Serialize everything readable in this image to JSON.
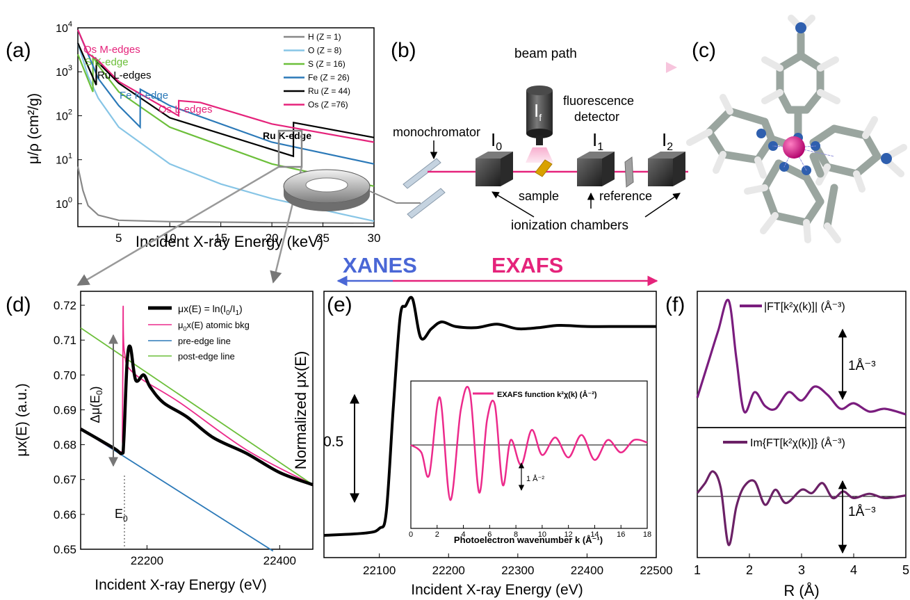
{
  "colors": {
    "H": "#888888",
    "O": "#87c5e6",
    "S": "#6cbf3a",
    "Fe": "#2b79b8",
    "Ru": "#000000",
    "Os": "#e5237b",
    "xanes": "#4a67d6",
    "exafs": "#e5237b",
    "purple": "#7a1d7e",
    "purple2": "#6b2166",
    "pink": "#ec2a8b"
  },
  "panels": {
    "a": {
      "label": "(a)",
      "ylabel": "μ/ρ (cm²/g)",
      "xlabel": "Incident X-ray Energy (keV)",
      "xticks": [
        "5",
        "10",
        "15",
        "20",
        "25",
        "30"
      ],
      "yticks_exp": [
        "0",
        "1",
        "2",
        "3",
        "4"
      ],
      "ytick_base": "10",
      "legend": [
        "H (Z = 1)",
        "O (Z = 8)",
        "S (Z = 16)",
        "Fe (Z = 26)",
        "Ru (Z = 44)",
        "Os (Z =76)"
      ],
      "annotations": {
        "os_m": "Os M-edges",
        "s_k": "S K-edge",
        "ru_l": "Ru L-edges",
        "fe_k": "Fe K-edge",
        "os_l": "Os L-edges",
        "ru_k": "Ru K-edge"
      }
    },
    "b": {
      "label": "(b)",
      "beam_path": "beam path",
      "monochromator": "monochromator",
      "fluorescence": "fluorescence",
      "detector": "detector",
      "i0": "I",
      "i0_sub": "0",
      "i1": "I",
      "i1_sub": "1",
      "i2": "I",
      "i2_sub": "2",
      "if": "I",
      "if_sub": "f",
      "sample": "sample",
      "reference": "reference",
      "ionization": "ionization chambers"
    },
    "c": {
      "label": "(c)"
    },
    "d": {
      "label": "(d)",
      "ylabel": "μx(E) (a.u.)",
      "xlabel": "Incident X-ray Energy (eV)",
      "yticks": [
        "0.65",
        "0.66",
        "0.67",
        "0.68",
        "0.69",
        "0.70",
        "0.71",
        "0.72"
      ],
      "xticks": [
        "22200",
        "22400"
      ],
      "legend": [
        "μx(E) = ln(I0/I1)",
        "μ0x(E) atomic bkg",
        "pre-edge line",
        "post-edge line"
      ],
      "delta_mu": "Δμ(E0)",
      "e0": "E0"
    },
    "banner": {
      "xanes": "XANES",
      "exafs": "EXAFS"
    },
    "e": {
      "label": "(e)",
      "ylabel": "Normalized μx(E)",
      "xlabel": "Incident X-ray Energy (eV)",
      "xticks": [
        "22100",
        "22200",
        "22300",
        "22400",
        "22500"
      ],
      "scale": "0.5",
      "inset_legend": "EXAFS function k²χ(k) (Å⁻²)",
      "inset_xlabel": "Photoelectron wavenumber k (Å⁻¹)",
      "inset_xticks": [
        "0",
        "2",
        "4",
        "6",
        "8",
        "10",
        "12",
        "14",
        "16",
        "18"
      ],
      "inset_scale": "1 Å⁻²"
    },
    "f": {
      "label": "(f)",
      "top_legend": "|FT[k²χ(k)]| (Å⁻³)",
      "bottom_legend": "Im{FT[k²χ(k)]} (Å⁻³)",
      "scale": "1Å⁻³",
      "xlabel": "R (Å)",
      "xticks": [
        "1",
        "2",
        "3",
        "4",
        "5"
      ]
    }
  },
  "chart_data": [
    {
      "type": "line",
      "panel": "a",
      "log_y": true,
      "xlabel": "Incident X-ray Energy (keV)",
      "ylabel": "μ/ρ (cm²/g)",
      "xlim": [
        1,
        30
      ],
      "ylim": [
        0.3,
        10000
      ],
      "series": [
        {
          "name": "H (Z = 1)",
          "x": [
            1,
            1.5,
            2,
            3,
            5,
            10,
            20,
            30
          ],
          "y": [
            7,
            2,
            0.9,
            0.55,
            0.42,
            0.39,
            0.37,
            0.36
          ]
        },
        {
          "name": "O (Z = 8)",
          "x": [
            1,
            2,
            3,
            5,
            10,
            15,
            20,
            30
          ],
          "y": [
            4500,
            800,
            250,
            55,
            8,
            2.8,
            1.3,
            0.4
          ]
        },
        {
          "name": "S (Z = 16)",
          "x": [
            1,
            2.47,
            2.48,
            3,
            5,
            10,
            20,
            30
          ],
          "y": [
            2500,
            350,
            2200,
            1400,
            350,
            55,
            8,
            2.5
          ]
        },
        {
          "name": "Fe (Z = 26)",
          "x": [
            1,
            3,
            5,
            7.1,
            7.11,
            10,
            20,
            30
          ],
          "y": [
            9000,
            700,
            170,
            55,
            400,
            170,
            25,
            8
          ]
        },
        {
          "name": "Ru (Z = 44)",
          "x": [
            1,
            2.8,
            2.81,
            3,
            5,
            10,
            22.1,
            22.12,
            30
          ],
          "y": [
            4500,
            500,
            1900,
            1600,
            550,
            90,
            12,
            70,
            32
          ]
        },
        {
          "name": "Os (Z =76)",
          "x": [
            1,
            2,
            3,
            5,
            10.87,
            10.88,
            13,
            20,
            30
          ],
          "y": [
            9000,
            2600,
            1800,
            600,
            100,
            220,
            200,
            65,
            25
          ]
        }
      ]
    },
    {
      "type": "line",
      "panel": "d",
      "xlabel": "Incident X-ray Energy (eV)",
      "ylabel": "μx(E) (a.u.)",
      "xlim": [
        22100,
        22450
      ],
      "ylim": [
        0.65,
        0.724
      ],
      "series": [
        {
          "name": "μx(E) = ln(I0/I1)",
          "x": [
            22100,
            22150,
            22162,
            22165,
            22170,
            22175,
            22183,
            22195,
            22205,
            22225,
            22260,
            22300,
            22350,
            22400,
            22450
          ],
          "y": [
            0.6845,
            0.679,
            0.6775,
            0.681,
            0.7035,
            0.708,
            0.6985,
            0.7,
            0.6965,
            0.692,
            0.688,
            0.682,
            0.6775,
            0.672,
            0.6685
          ]
        },
        {
          "name": "μ0x(E) atomic bkg",
          "x": [
            22100,
            22160,
            22163,
            22164,
            22166,
            22180,
            22250,
            22350,
            22450
          ],
          "y": [
            0.6845,
            0.678,
            0.683,
            0.719,
            0.7065,
            0.7005,
            0.692,
            0.6785,
            0.6685
          ]
        },
        {
          "name": "pre-edge line",
          "x": [
            22100,
            22390
          ],
          "y": [
            0.6845,
            0.6495
          ]
        },
        {
          "name": "post-edge line",
          "x": [
            22100,
            22450
          ],
          "y": [
            0.7135,
            0.6685
          ]
        }
      ]
    },
    {
      "type": "line",
      "panel": "e",
      "xlabel": "Incident X-ray Energy (eV)",
      "ylabel": "Normalized μx(E)",
      "xlim": [
        22020,
        22500
      ],
      "series": [
        {
          "name": "Normalized μx(E)",
          "x": [
            22020,
            22080,
            22100,
            22110,
            22120,
            22130,
            22138,
            22148,
            22160,
            22175,
            22190,
            22210,
            22240,
            22270,
            22300,
            22330,
            22360,
            22400,
            22450,
            22500
          ],
          "y": [
            0.0,
            0.01,
            0.03,
            0.1,
            0.55,
            0.95,
            1.0,
            1.03,
            0.86,
            0.9,
            0.93,
            0.91,
            0.905,
            0.92,
            0.9,
            0.905,
            0.915,
            0.91,
            0.91,
            0.91
          ]
        }
      ]
    },
    {
      "type": "line",
      "panel": "e-inset",
      "xlabel": "Photoelectron wavenumber k (Å⁻¹)",
      "xlim": [
        0,
        18
      ],
      "series": [
        {
          "name": "EXAFS function k²χ(k) (Å⁻²)",
          "x": [
            0,
            0.8,
            1.4,
            2.2,
            3.0,
            3.8,
            4.5,
            5.2,
            5.8,
            6.4,
            7.0,
            7.6,
            8.4,
            9.2,
            10.0,
            11.0,
            12.0,
            13.0,
            14.0,
            15.0,
            16.0,
            17.0,
            18.0
          ],
          "y": [
            0.0,
            -0.3,
            -1.2,
            1.9,
            -2.2,
            1.4,
            2.1,
            -1.9,
            1.0,
            1.6,
            -1.6,
            0.2,
            -0.8,
            0.6,
            -0.4,
            0.3,
            -0.5,
            0.4,
            -0.6,
            0.2,
            -0.3,
            0.2,
            0.1
          ]
        }
      ]
    },
    {
      "type": "line",
      "panel": "f",
      "xlabel": "R (Å)",
      "xlim": [
        1,
        5
      ],
      "series": [
        {
          "name": "|FT[k²χ(k)]| (Å⁻³)",
          "x": [
            1.0,
            1.2,
            1.4,
            1.6,
            1.75,
            1.9,
            2.1,
            2.3,
            2.5,
            2.75,
            3.0,
            3.25,
            3.5,
            3.75,
            4.0,
            4.3,
            4.6,
            5.0
          ],
          "y": [
            0.35,
            0.95,
            1.55,
            2.1,
            1.05,
            0.1,
            0.45,
            0.2,
            0.15,
            0.45,
            0.3,
            0.55,
            0.4,
            0.15,
            0.25,
            0.1,
            0.15,
            0.05
          ]
        },
        {
          "name": "Im{FT[k²χ(k)]} (Å⁻³)",
          "x": [
            1.0,
            1.15,
            1.3,
            1.45,
            1.6,
            1.75,
            1.9,
            2.1,
            2.3,
            2.5,
            2.7,
            3.0,
            3.2,
            3.4,
            3.6,
            3.8,
            4.0,
            4.3,
            4.6,
            5.0
          ],
          "y": [
            0.1,
            0.4,
            0.75,
            0.25,
            -1.45,
            -0.3,
            0.3,
            0.45,
            -0.25,
            0.2,
            -0.2,
            0.2,
            0.1,
            0.4,
            -0.05,
            0.15,
            -0.05,
            0.08,
            -0.05,
            0.03
          ]
        }
      ]
    }
  ]
}
